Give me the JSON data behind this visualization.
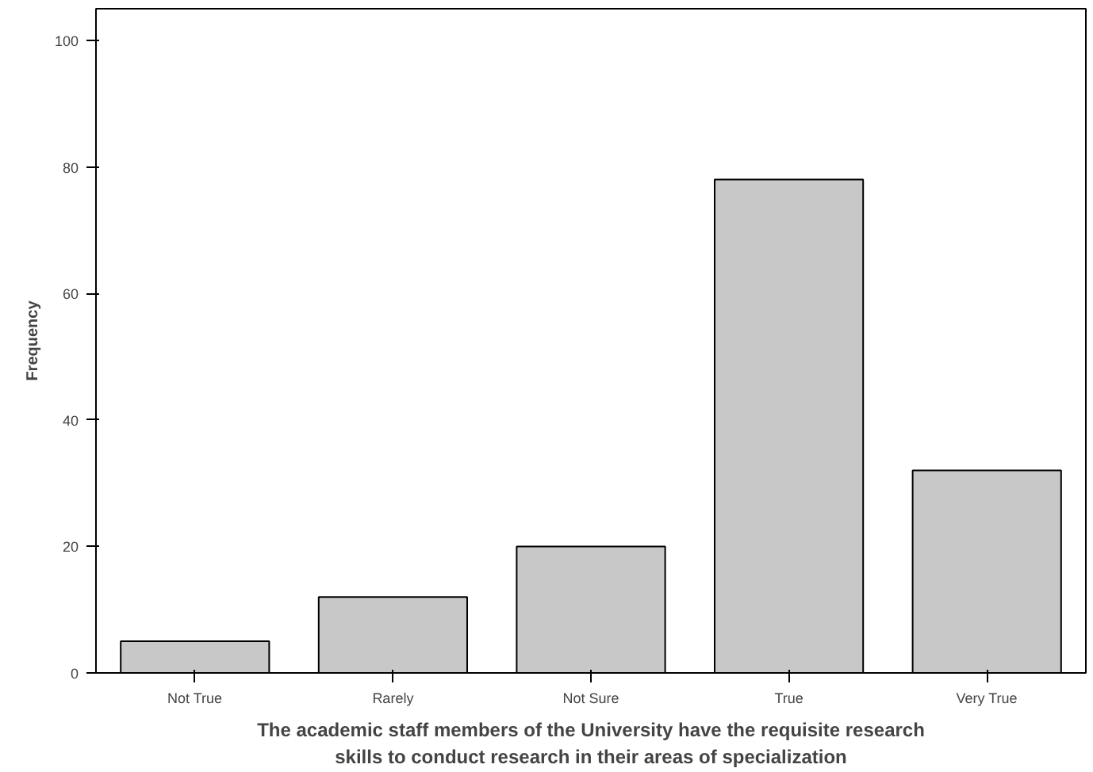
{
  "chart_data": {
    "type": "bar",
    "categories": [
      "Not True",
      "Rarely",
      "Not Sure",
      "True",
      "Very True"
    ],
    "values": [
      5,
      12,
      20,
      78,
      32
    ],
    "color": "#c8c8c8",
    "xlabel": "The academic staff members of the University have the requisite research\nskills to conduct research in their areas of specialization",
    "ylabel": "Frequency",
    "ylim": [
      0,
      105
    ],
    "yticks": [
      0,
      20,
      40,
      60,
      80,
      100
    ],
    "grid": false
  }
}
